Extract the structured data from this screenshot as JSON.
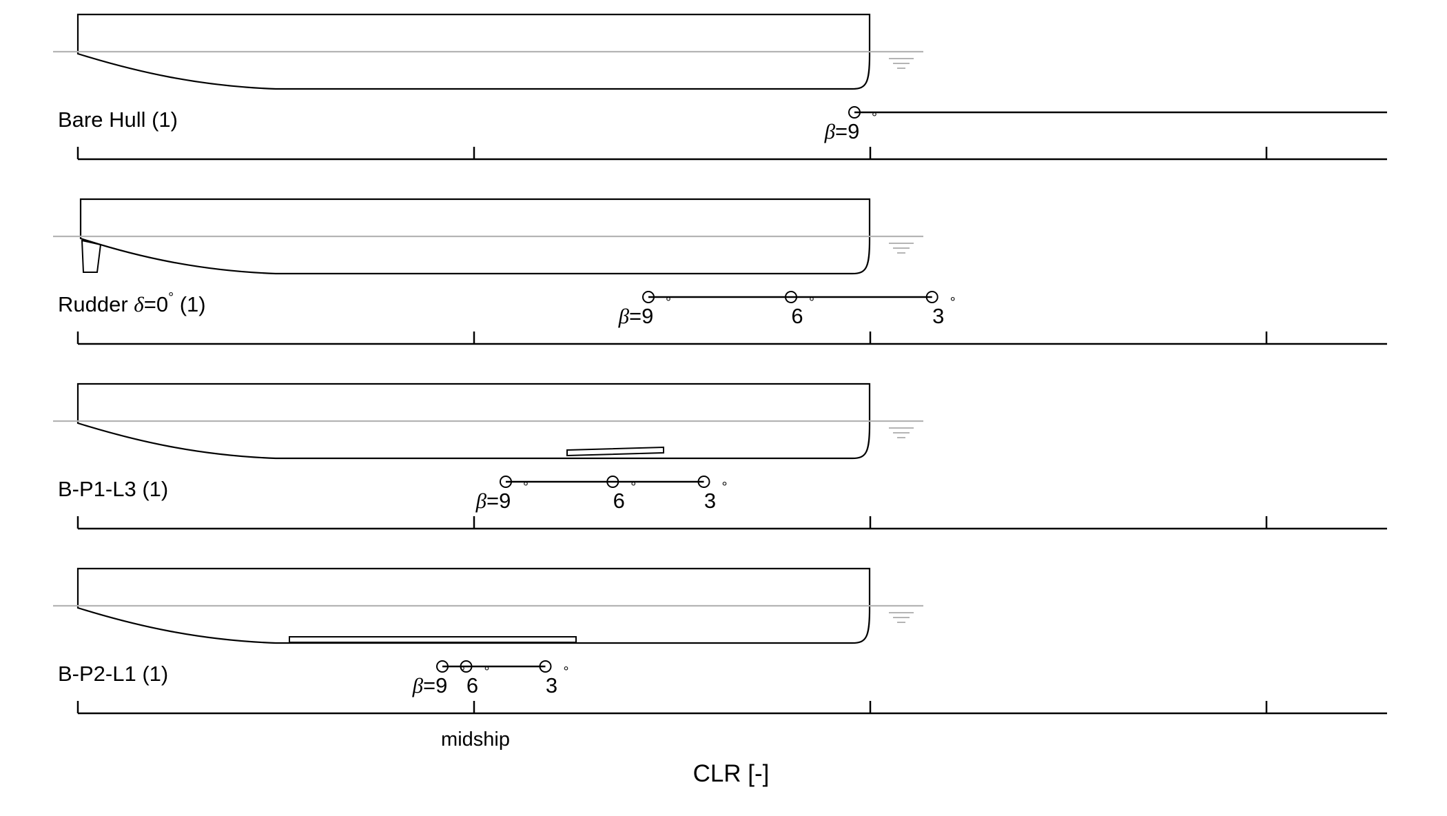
{
  "chart_data": {
    "type": "scatter",
    "x_axis": {
      "label": "CLR [-]",
      "tick_labels": [
        "midship"
      ]
    },
    "colors": {
      "line": "#000000",
      "waterline": "#b4b4b4"
    },
    "panels": [
      {
        "label": "Bare Hull (1)",
        "label_parts": {
          "pre": "Bare Hull ",
          "sym": "",
          "post": "(1)",
          "sup": ""
        },
        "appendage": "none",
        "beta_prefix": "β=",
        "series": [
          {
            "beta": 9,
            "x": 0.98
          }
        ]
      },
      {
        "label": "Rudder δ=0° (1)",
        "label_parts": {
          "pre": "Rudder ",
          "sym": "δ",
          "post": "=0",
          "sup": "°",
          "tail": " (1)"
        },
        "appendage": "rudder",
        "beta_prefix": "β=",
        "series": [
          {
            "beta": 9,
            "x": 0.72
          },
          {
            "beta": 6,
            "x": 0.9
          },
          {
            "beta": 3,
            "x": 1.078
          }
        ]
      },
      {
        "label": "B-P1-L3 (1)",
        "label_parts": {
          "pre": "B-P1-L3 ",
          "sym": "",
          "post": "(1)",
          "sup": ""
        },
        "appendage": "short plate",
        "beta_prefix": "β=",
        "series": [
          {
            "beta": 9,
            "x": 0.54
          },
          {
            "beta": 6,
            "x": 0.675
          },
          {
            "beta": 3,
            "x": 0.79
          }
        ]
      },
      {
        "label": "B-P2-L1 (1)",
        "label_parts": {
          "pre": "B-P2-L1 ",
          "sym": "",
          "post": "(1)",
          "sup": ""
        },
        "appendage": "long plate",
        "beta_prefix": "β=",
        "series": [
          {
            "beta": 9,
            "x": 0.46
          },
          {
            "beta": 6,
            "x": 0.49
          },
          {
            "beta": 3,
            "x": 0.59
          }
        ]
      }
    ]
  }
}
